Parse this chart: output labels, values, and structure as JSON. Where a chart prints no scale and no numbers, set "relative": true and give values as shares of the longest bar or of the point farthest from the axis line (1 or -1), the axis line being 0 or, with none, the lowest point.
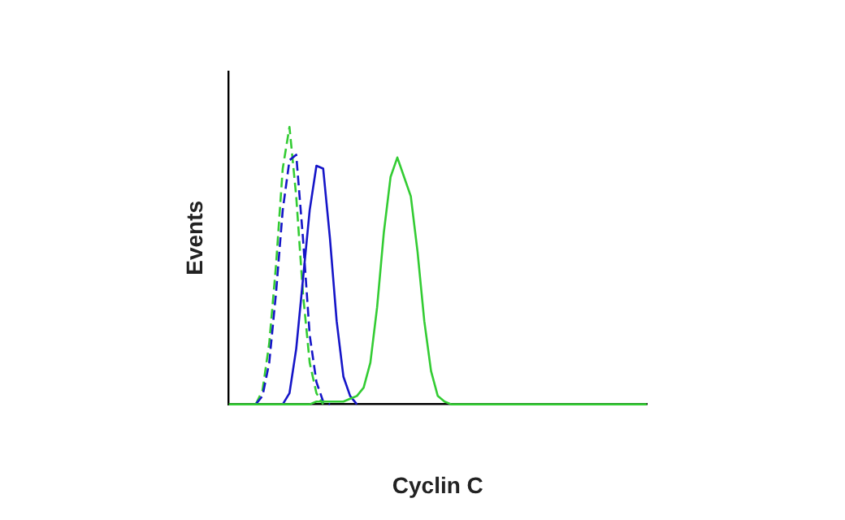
{
  "chart_data": {
    "type": "line",
    "relative": true,
    "xlabel": "Cyclin C",
    "ylabel": "Events",
    "grid": false,
    "legend": false,
    "marker": "none",
    "categories": [
      null,
      null,
      null,
      null,
      null,
      null,
      null,
      null,
      null,
      null,
      null,
      null,
      null,
      null,
      null,
      null,
      null,
      null,
      null,
      null,
      null,
      null,
      null,
      null,
      null,
      null,
      null,
      null,
      null,
      null,
      null,
      null,
      null,
      null,
      null,
      null,
      null,
      null,
      null,
      null,
      null,
      null,
      null,
      null,
      null,
      null,
      null,
      null,
      null,
      null,
      null,
      null,
      null,
      null,
      null,
      null,
      null,
      null,
      null,
      null,
      null,
      null,
      null
    ],
    "series": [
      {
        "color": "#33cc33",
        "line_style": "solid",
        "values": [
          0,
          0,
          0,
          0,
          0,
          0,
          0,
          0,
          0,
          0,
          0,
          0,
          0,
          0.01,
          0.01,
          0.01,
          0.01,
          0.01,
          0.02,
          0.03,
          0.06,
          0.15,
          0.35,
          0.62,
          0.82,
          0.89,
          0.82,
          0.75,
          0.55,
          0.3,
          0.12,
          0.03,
          0.01,
          0,
          0,
          0,
          0,
          0,
          0,
          0,
          0,
          0,
          0,
          0,
          0,
          0,
          0,
          0,
          0,
          0,
          0,
          0,
          0,
          0,
          0,
          0,
          0,
          0,
          0,
          0,
          0,
          0,
          0
        ]
      },
      {
        "color": "#1515c8",
        "line_style": "solid",
        "values": [
          null,
          null,
          null,
          null,
          null,
          null,
          null,
          null,
          0,
          0.04,
          0.2,
          0.45,
          0.7,
          0.86,
          0.85,
          0.6,
          0.3,
          0.1,
          0.03,
          0,
          null,
          null,
          null,
          null,
          null,
          null,
          null,
          null,
          null,
          null,
          null,
          null,
          null,
          null,
          null,
          null,
          null,
          null,
          null,
          null,
          null,
          null,
          null,
          null,
          null,
          null,
          null,
          null,
          null,
          null,
          null,
          null,
          null,
          null,
          null,
          null,
          null,
          null,
          null,
          null,
          null,
          null,
          null
        ]
      },
      {
        "color": "#1515c8",
        "line_style": "dashed",
        "values": [
          null,
          null,
          null,
          null,
          0,
          0.03,
          0.15,
          0.4,
          0.7,
          0.88,
          0.9,
          0.6,
          0.25,
          0.08,
          0.01,
          0,
          null,
          null,
          null,
          null,
          null,
          null,
          null,
          null,
          null,
          null,
          null,
          null,
          null,
          null,
          null,
          null,
          null,
          null,
          null,
          null,
          null,
          null,
          null,
          null,
          null,
          null,
          null,
          null,
          null,
          null,
          null,
          null,
          null,
          null,
          null,
          null,
          null,
          null,
          null,
          null,
          null,
          null,
          null,
          null,
          null,
          null,
          null
        ]
      },
      {
        "color": "#33cc33",
        "line_style": "dashed",
        "values": [
          null,
          null,
          null,
          null,
          0,
          0.05,
          0.22,
          0.5,
          0.85,
          1,
          0.75,
          0.4,
          0.15,
          0.04,
          0,
          null,
          null,
          null,
          null,
          null,
          null,
          null,
          null,
          null,
          null,
          null,
          null,
          null,
          null,
          null,
          null,
          null,
          null,
          null,
          null,
          null,
          null,
          null,
          null,
          null,
          null,
          null,
          null,
          null,
          null,
          null,
          null,
          null,
          null,
          null,
          null,
          null,
          null,
          null,
          null,
          null,
          null,
          null,
          null,
          null,
          null,
          null,
          null
        ]
      }
    ]
  }
}
